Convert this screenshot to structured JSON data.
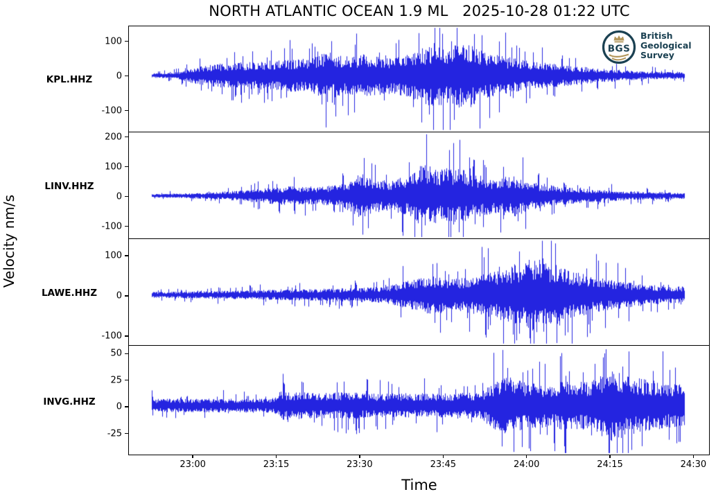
{
  "title": "NORTH ATLANTIC OCEAN 1.9 ML   2025-10-28 01:22 UTC",
  "logo": {
    "acronym": "BGS",
    "line1": "British",
    "line2": "Geological",
    "line3": "Survey",
    "navy": "#1b4152",
    "gold": "#b2965a"
  },
  "chart_data": {
    "type": "line",
    "title": "NORTH ATLANTIC OCEAN 1.9 ML   2025-10-28 01:22 UTC",
    "xlabel": "Time",
    "ylabel": "Velocity nm/s",
    "line_color": "#0b0bdc",
    "background": "#ffffff",
    "grid": false,
    "x_tick_labels": [
      "23:00",
      "23:15",
      "23:30",
      "23:45",
      "24:00",
      "24:15",
      "24:30"
    ],
    "x_tick_positions": [
      0.1095,
      0.2533,
      0.3971,
      0.541,
      0.6848,
      0.8286,
      0.9724
    ],
    "data_span": [
      0.04,
      0.957
    ],
    "panels": [
      {
        "station": "KPL.HHZ",
        "ylim": [
          -162,
          142
        ],
        "yticks": [
          100,
          0,
          -100
        ],
        "envelope_t": [
          0,
          0.04,
          0.08,
          0.12,
          0.16,
          0.2,
          0.25,
          0.3,
          0.33,
          0.36,
          0.4,
          0.44,
          0.47,
          0.5,
          0.53,
          0.56,
          0.59,
          0.62,
          0.66,
          0.7,
          0.75,
          0.8,
          0.85,
          0.9,
          0.95,
          1.0
        ],
        "envelope_amp": [
          8,
          10,
          30,
          42,
          48,
          52,
          58,
          62,
          88,
          68,
          78,
          66,
          74,
          92,
          118,
          100,
          128,
          88,
          70,
          55,
          44,
          34,
          25,
          18,
          14,
          12
        ]
      },
      {
        "station": "LINV.HHZ",
        "ylim": [
          -143,
          213
        ],
        "yticks": [
          200,
          100,
          0,
          -100
        ],
        "envelope_t": [
          0,
          0.06,
          0.12,
          0.18,
          0.22,
          0.27,
          0.32,
          0.36,
          0.39,
          0.42,
          0.45,
          0.48,
          0.51,
          0.54,
          0.57,
          0.6,
          0.64,
          0.68,
          0.72,
          0.77,
          0.82,
          0.87,
          0.92,
          1.0
        ],
        "envelope_amp": [
          7,
          10,
          16,
          24,
          34,
          42,
          38,
          52,
          95,
          70,
          62,
          85,
          135,
          110,
          125,
          95,
          75,
          88,
          55,
          38,
          28,
          22,
          18,
          13
        ]
      },
      {
        "station": "LAWE.HHZ",
        "ylim": [
          -125,
          139
        ],
        "yticks": [
          100,
          0,
          -100
        ],
        "envelope_t": [
          0,
          0.08,
          0.14,
          0.2,
          0.26,
          0.32,
          0.38,
          0.44,
          0.48,
          0.52,
          0.56,
          0.6,
          0.64,
          0.68,
          0.73,
          0.77,
          0.81,
          0.85,
          0.9,
          0.95,
          1.0
        ],
        "envelope_amp": [
          9,
          11,
          13,
          15,
          17,
          19,
          22,
          26,
          45,
          60,
          48,
          58,
          72,
          95,
          120,
          85,
          65,
          50,
          38,
          30,
          26
        ]
      },
      {
        "station": "INVG.HHZ",
        "ylim": [
          -46,
          56
        ],
        "yticks": [
          50,
          25,
          0,
          -25
        ],
        "envelope_t": [
          0,
          0.05,
          0.1,
          0.15,
          0.2,
          0.23,
          0.24,
          0.28,
          0.33,
          0.38,
          0.43,
          0.48,
          0.53,
          0.58,
          0.62,
          0.64,
          0.67,
          0.7,
          0.74,
          0.78,
          0.82,
          0.86,
          0.9,
          0.94,
          1.0
        ],
        "envelope_amp": [
          8,
          8,
          8,
          8,
          8,
          9,
          17,
          16,
          15,
          16,
          14,
          15,
          14,
          15,
          16,
          28,
          34,
          28,
          26,
          30,
          28,
          44,
          34,
          30,
          24
        ]
      }
    ]
  }
}
